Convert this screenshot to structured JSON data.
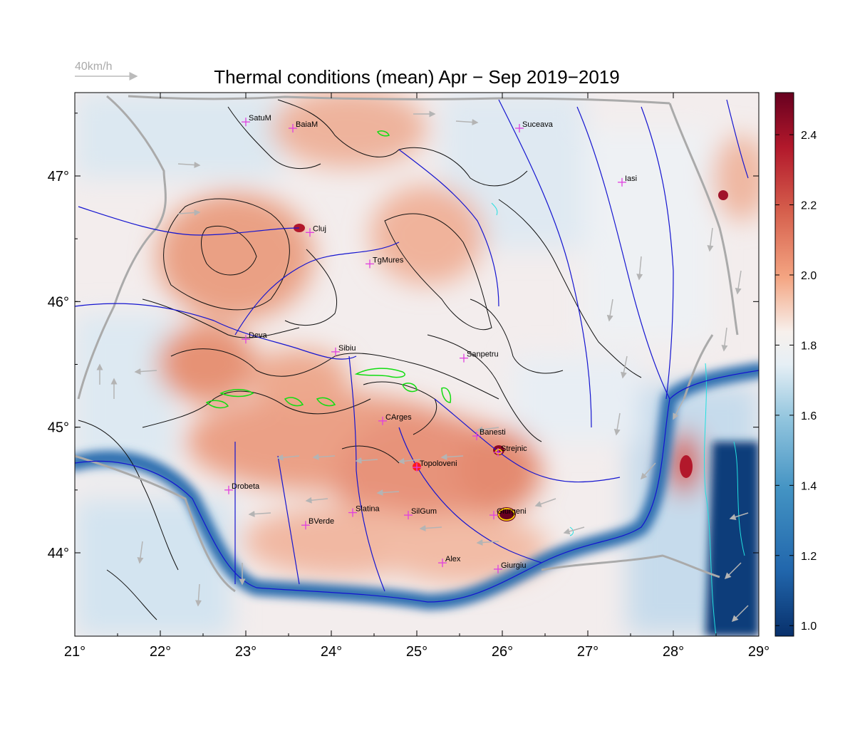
{
  "title": "Thermal conditions (mean) Apr − Sep  2019−2019",
  "scale": {
    "label": "40km/h"
  },
  "x_axis": {
    "ticks": [
      "21°",
      "22°",
      "23°",
      "24°",
      "25°",
      "26°",
      "27°",
      "28°",
      "29°"
    ]
  },
  "y_axis": {
    "ticks": [
      "47°",
      "46°",
      "45°",
      "44°"
    ]
  },
  "colorbar": {
    "ticks": [
      "2.4",
      "2.2",
      "2.0",
      "1.8",
      "1.6",
      "1.4",
      "1.2",
      "1.0"
    ],
    "range": [
      0.97,
      2.52
    ]
  },
  "cities": [
    {
      "name": "SatuM",
      "lon": 23.0,
      "lat": 47.43
    },
    {
      "name": "BaiaM",
      "lon": 23.55,
      "lat": 47.38
    },
    {
      "name": "Suceava",
      "lon": 26.2,
      "lat": 47.38
    },
    {
      "name": "Iasi",
      "lon": 27.4,
      "lat": 46.95
    },
    {
      "name": "Cluj",
      "lon": 23.75,
      "lat": 46.55
    },
    {
      "name": "TgMures",
      "lon": 24.45,
      "lat": 46.3
    },
    {
      "name": "Deva",
      "lon": 23.0,
      "lat": 45.7
    },
    {
      "name": "Sibiu",
      "lon": 24.05,
      "lat": 45.6
    },
    {
      "name": "Sanpetru",
      "lon": 25.55,
      "lat": 45.55
    },
    {
      "name": "CArges",
      "lon": 24.6,
      "lat": 45.05
    },
    {
      "name": "Banesti",
      "lon": 25.7,
      "lat": 44.93
    },
    {
      "name": "Strejnic",
      "lon": 25.95,
      "lat": 44.8
    },
    {
      "name": "Topoloveni",
      "lon": 25.0,
      "lat": 44.68
    },
    {
      "name": "Drobeta",
      "lon": 22.8,
      "lat": 44.5
    },
    {
      "name": "Slatina",
      "lon": 24.25,
      "lat": 44.32
    },
    {
      "name": "SilGum",
      "lon": 24.9,
      "lat": 44.3
    },
    {
      "name": "Giurgeni",
      "lon": 25.9,
      "lat": 44.3
    },
    {
      "name": "BVerde",
      "lon": 23.7,
      "lat": 44.22
    },
    {
      "name": "Alex",
      "lon": 25.3,
      "lat": 43.92
    },
    {
      "name": "Giurgiu",
      "lon": 25.95,
      "lat": 43.87
    }
  ]
}
